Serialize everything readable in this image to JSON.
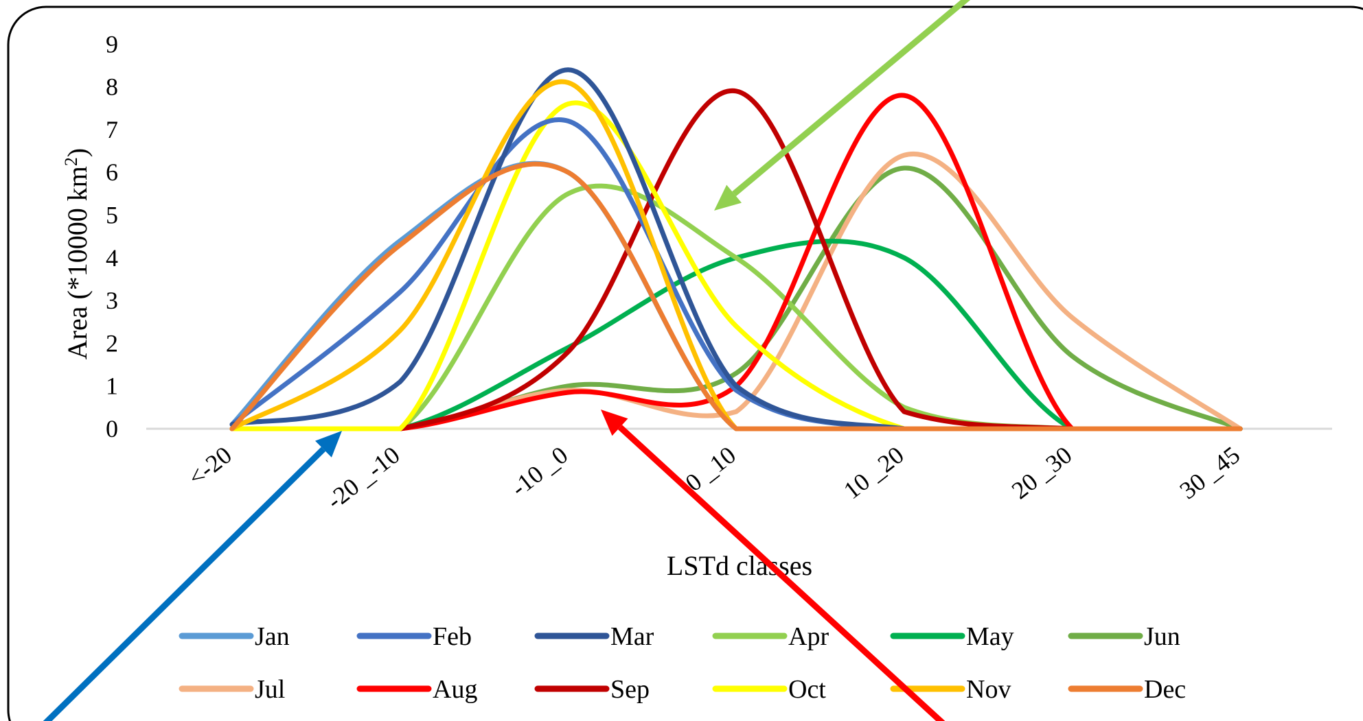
{
  "chart_data": {
    "type": "line",
    "title": "",
    "xlabel": "LSTd classes",
    "ylabel": "Area (*10000 km²)",
    "ylabel_main": "Area (*10000 km",
    "ylabel_sup": "2",
    "ylabel_end": ")",
    "ylim": [
      0,
      9
    ],
    "yticks": [
      "0",
      "1",
      "2",
      "3",
      "4",
      "5",
      "6",
      "7",
      "8",
      "9"
    ],
    "categories": [
      "<-20",
      "-20 _-10",
      "-10 _0",
      "0 _10",
      "10 _20",
      "20 _30",
      "30 _45"
    ],
    "grid": false,
    "legend_position": "bottom",
    "smooth": true,
    "series": [
      {
        "name": "Jan",
        "color": "#5B9BD5",
        "values": [
          0.1,
          4.4,
          6.0,
          0,
          0,
          0,
          0
        ]
      },
      {
        "name": "Feb",
        "color": "#4472C4",
        "values": [
          0.1,
          3.2,
          7.2,
          0.9,
          0,
          0,
          0
        ]
      },
      {
        "name": "Mar",
        "color": "#2F5597",
        "values": [
          0.1,
          1.1,
          8.4,
          1.0,
          0,
          0,
          0
        ]
      },
      {
        "name": "Apr",
        "color": "#92D050",
        "values": [
          0,
          0,
          5.5,
          4.0,
          0.5,
          0,
          0
        ]
      },
      {
        "name": "May",
        "color": "#00B050",
        "values": [
          0,
          0,
          1.9,
          4.0,
          4.0,
          0,
          0
        ]
      },
      {
        "name": "Jun",
        "color": "#70AD47",
        "values": [
          0,
          0,
          1.0,
          1.3,
          6.1,
          1.7,
          0
        ]
      },
      {
        "name": "Jul",
        "color": "#F4B183",
        "values": [
          0,
          0,
          0.9,
          0.4,
          6.4,
          2.6,
          0
        ]
      },
      {
        "name": "Aug",
        "color": "#FF0000",
        "values": [
          0,
          0,
          0.85,
          1.0,
          7.8,
          0,
          0
        ]
      },
      {
        "name": "Sep",
        "color": "#C00000",
        "values": [
          0,
          0,
          1.8,
          7.9,
          0.4,
          0,
          0
        ]
      },
      {
        "name": "Oct",
        "color": "#FFFF00",
        "values": [
          0,
          0,
          7.6,
          2.4,
          0,
          0,
          0
        ]
      },
      {
        "name": "Nov",
        "color": "#FFC000",
        "values": [
          0,
          2.3,
          8.1,
          0,
          0,
          0,
          0
        ]
      },
      {
        "name": "Dec",
        "color": "#ED7D31",
        "values": [
          0,
          4.3,
          6.0,
          0,
          0,
          0,
          0
        ]
      }
    ],
    "annotations": [
      {
        "type": "arrow",
        "color": "#92D050"
      },
      {
        "type": "arrow",
        "color": "#0070C0"
      },
      {
        "type": "arrow",
        "color": "#FF0000"
      }
    ]
  }
}
